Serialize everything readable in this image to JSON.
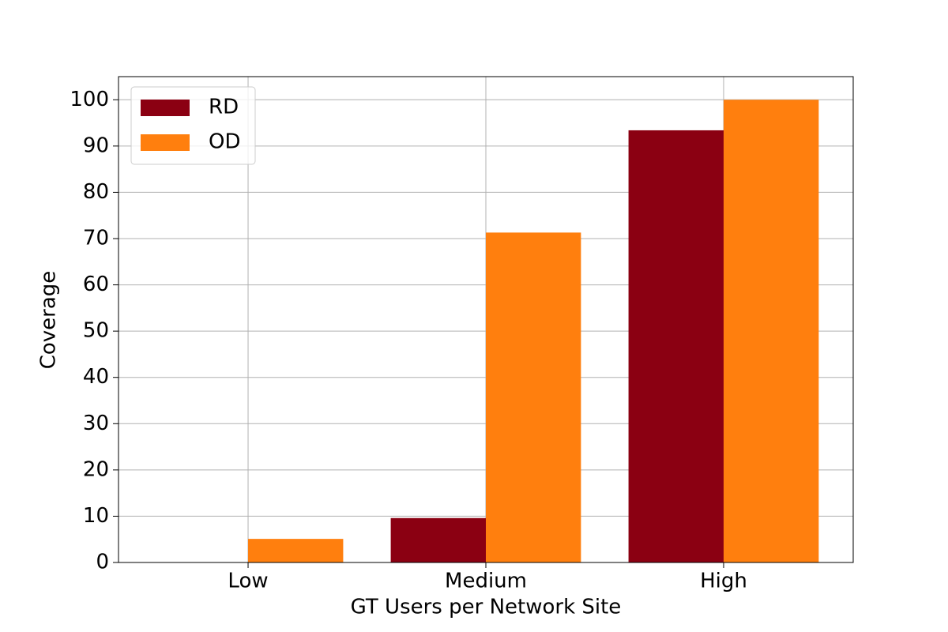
{
  "chart_data": {
    "type": "bar",
    "x_label": "GT Users per Network Site",
    "y_label": "Coverage",
    "categories": [
      "Low",
      "Medium",
      "High"
    ],
    "series": [
      {
        "name": "RD",
        "color": "#8b0012",
        "values": [
          0,
          9.6,
          93.4
        ]
      },
      {
        "name": "OD",
        "color": "#ff7f0e",
        "values": [
          5.1,
          71.3,
          100
        ]
      }
    ],
    "ylim": [
      0,
      105
    ],
    "yticks": [
      0,
      10,
      20,
      30,
      40,
      50,
      60,
      70,
      80,
      90,
      100
    ],
    "grid": true,
    "legend": "upper-left"
  }
}
